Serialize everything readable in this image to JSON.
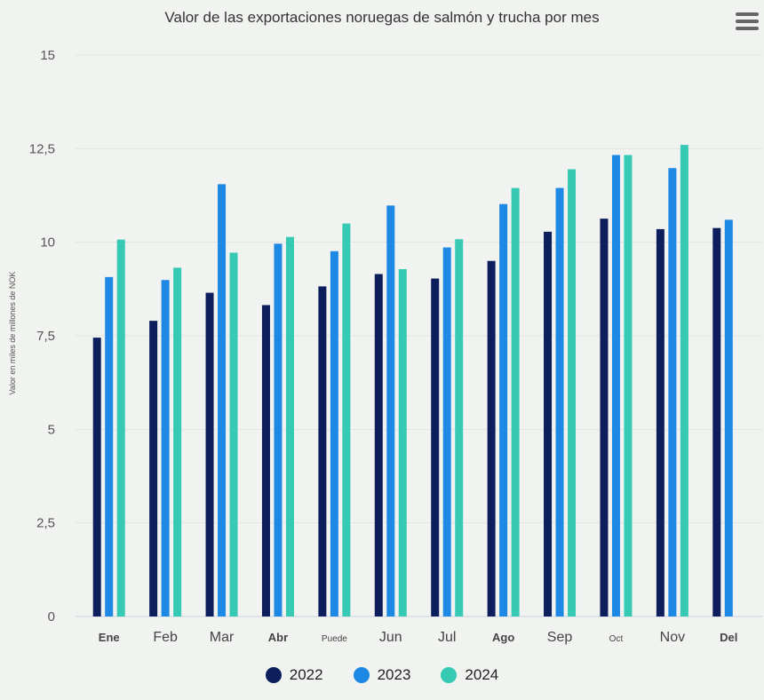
{
  "chart_data": {
    "type": "bar",
    "title": "Valor de las exportaciones noruegas de salmón y trucha por mes",
    "ylabel": "Valor en miles de millones de NOK",
    "xlabel": "",
    "ylim": [
      0,
      15
    ],
    "yticks": [
      0,
      2.5,
      5,
      7.5,
      10,
      12.5,
      15
    ],
    "ytick_labels": [
      "0",
      "2,5",
      "5",
      "7,5",
      "10",
      "12,5",
      "15"
    ],
    "grid": true,
    "legend_position": "bottom",
    "categories": [
      "Ene",
      "Feb",
      "Mar",
      "Abr",
      "Puede",
      "Jun",
      "Jul",
      "Ago",
      "Sep",
      "Oct",
      "Nov",
      "Del"
    ],
    "series": [
      {
        "name": "2022",
        "color": "#0c1f5c",
        "values": [
          7.45,
          7.9,
          8.65,
          8.32,
          8.82,
          9.15,
          9.03,
          9.5,
          10.28,
          10.63,
          10.35,
          10.38
        ]
      },
      {
        "name": "2023",
        "color": "#1e88e5",
        "values": [
          9.07,
          8.99,
          11.55,
          9.96,
          9.76,
          10.98,
          9.86,
          11.02,
          11.45,
          12.33,
          11.98,
          10.6
        ]
      },
      {
        "name": "2024",
        "color": "#36c9b4",
        "values": [
          10.07,
          9.32,
          9.72,
          10.14,
          10.5,
          9.28,
          10.08,
          11.45,
          11.95,
          12.33,
          12.6,
          null
        ]
      }
    ]
  },
  "ui": {
    "menu_icon": "hamburger-menu-icon"
  }
}
